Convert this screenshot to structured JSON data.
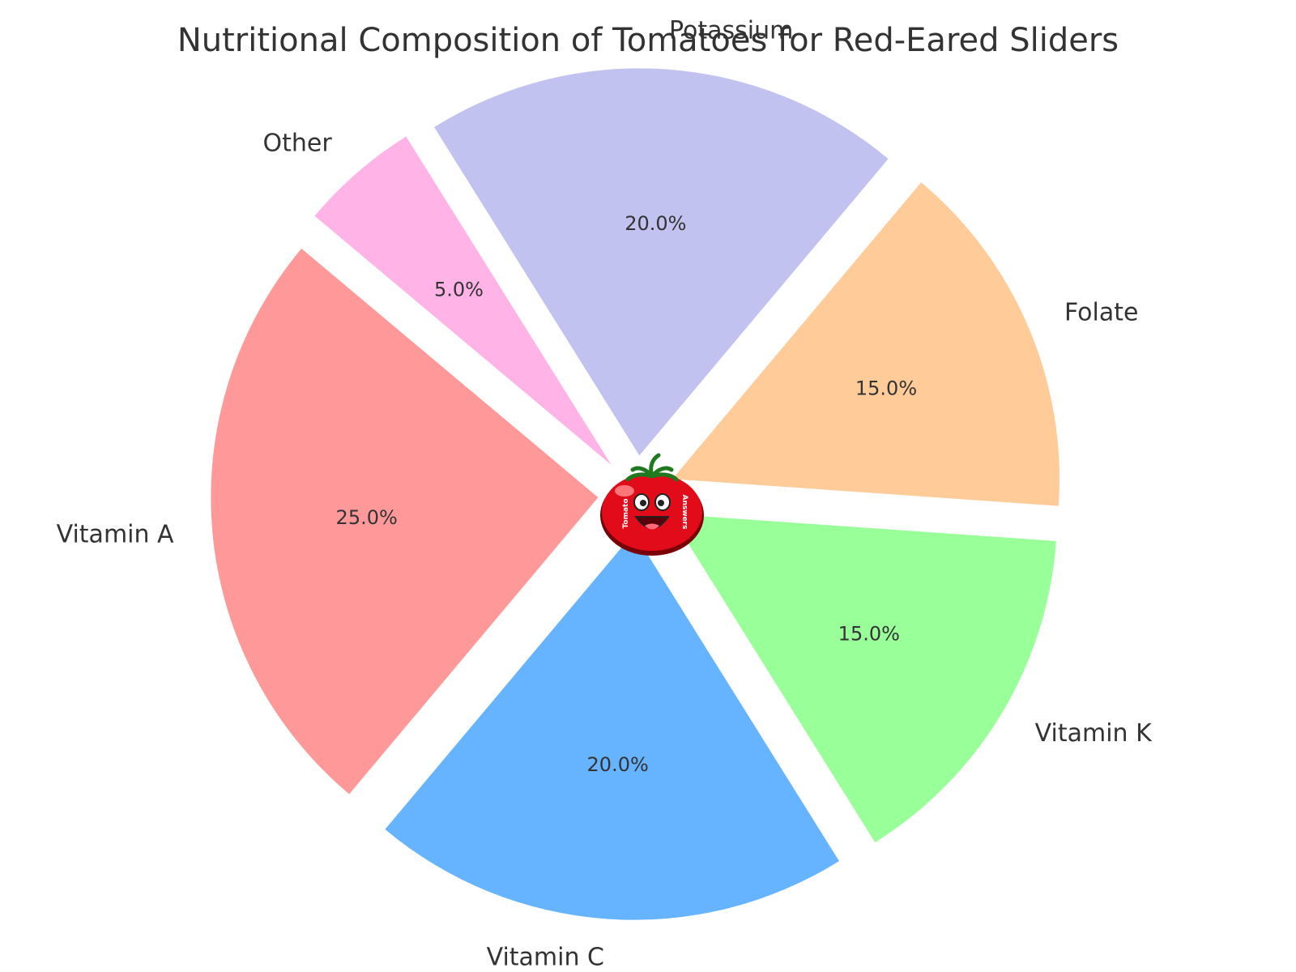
{
  "chart_data": {
    "type": "pie",
    "title": "Nutritional Composition of Tomatoes for Red-Eared Sliders",
    "categories": [
      "Vitamin A",
      "Vitamin C",
      "Vitamin K",
      "Folate",
      "Potassium",
      "Other"
    ],
    "values": [
      25,
      20,
      15,
      15,
      20,
      5
    ],
    "value_labels": [
      "25.0%",
      "20.0%",
      "15.0%",
      "15.0%",
      "20.0%",
      "5.0%"
    ],
    "colors": [
      "#ff9999",
      "#66b3ff",
      "#99ff99",
      "#ffcc99",
      "#c2c2f0",
      "#ffb3e6"
    ],
    "exploded": true,
    "start_angle_deg": 140,
    "direction": "counterclockwise",
    "center_logo": {
      "icon": "tomato-mascot-icon",
      "text_left": "Tomato",
      "text_right": "Answers"
    }
  }
}
